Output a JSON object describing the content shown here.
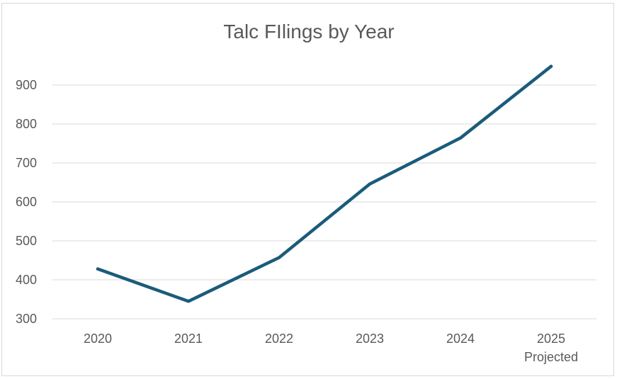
{
  "chart_data": {
    "type": "line",
    "title": "Talc FIlings by Year",
    "xlabel": "",
    "ylabel": "",
    "categories": [
      "2020",
      "2021",
      "2022",
      "2023",
      "2024",
      "2025"
    ],
    "category_sublabels": [
      "",
      "",
      "",
      "",
      "",
      "Projected"
    ],
    "series": [
      {
        "values": [
          428,
          345,
          457,
          646,
          764,
          948
        ],
        "color": "#1b5b7a"
      }
    ],
    "yticks": [
      300,
      400,
      500,
      600,
      700,
      800,
      900
    ],
    "ylim": [
      270,
      960
    ],
    "grid": true,
    "legend": "none"
  }
}
